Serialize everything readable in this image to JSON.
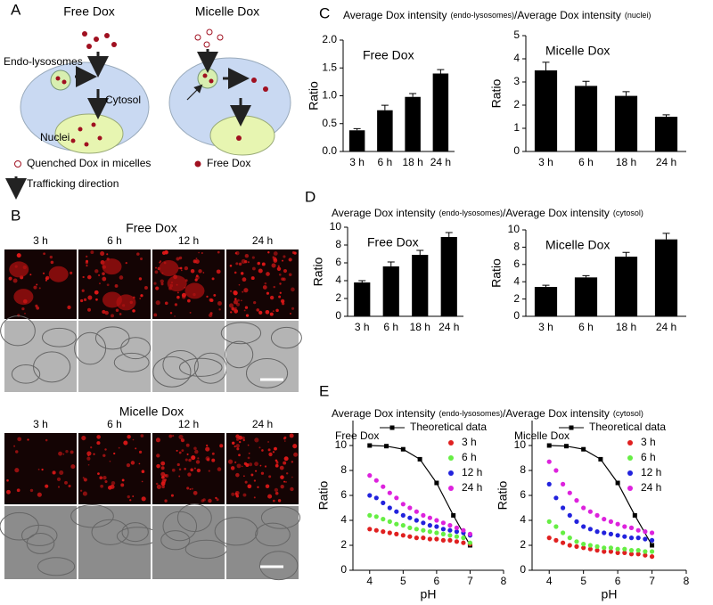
{
  "panel_a": {
    "label": "A",
    "free_title": "Free Dox",
    "micelle_title": "Micelle Dox",
    "endo": "Endo-lysosomes",
    "cytosol": "Cytosol",
    "nuclei": "Nuclei",
    "legend_quenched": "Quenched Dox in micelles",
    "legend_free": "Free Dox",
    "legend_trafficking": "Trafficking direction"
  },
  "panel_b": {
    "label": "B",
    "free_title": "Free Dox",
    "micelle_title": "Micelle Dox",
    "free_times": [
      "3 h",
      "6 h",
      "12 h",
      "24 h"
    ],
    "micelle_times": [
      "3 h",
      "6 h",
      "12 h",
      "24 h"
    ]
  },
  "panel_c": {
    "label": "C",
    "heading": [
      "Average Dox intensity",
      "(endo-lysosomes)",
      "/Average Dox intensity",
      "(nuclei)"
    ]
  },
  "panel_d": {
    "label": "D",
    "heading": [
      "Average Dox intensity",
      "(endo-lysosomes)",
      "/Average Dox intensity",
      "(cytosol)"
    ]
  },
  "panel_e": {
    "label": "E",
    "heading": [
      "Average Dox intensity",
      "(endo-lysosomes)",
      "/Average Dox intensity",
      "(cytosol)"
    ]
  },
  "chart_data": [
    {
      "type": "bar",
      "title": "Free Dox",
      "y_label": "Ratio",
      "color": "#000000",
      "categories": [
        "3 h",
        "6 h",
        "18 h",
        "24 h"
      ],
      "values": [
        0.38,
        0.74,
        0.98,
        1.4
      ],
      "errors": [
        0.03,
        0.09,
        0.06,
        0.07
      ],
      "ylim": [
        0,
        2
      ],
      "yticks": [
        {
          "value": 0,
          "label": "0.0"
        },
        0.5,
        {
          "value": 1,
          "label": "1.0"
        },
        1.5,
        {
          "value": 2,
          "label": "2.0"
        }
      ]
    },
    {
      "type": "bar",
      "title": "Micelle Dox",
      "y_label": "Ratio",
      "color": "#000000",
      "categories": [
        "3 h",
        "6 h",
        "18 h",
        "24 h"
      ],
      "values": [
        3.5,
        2.83,
        2.4,
        1.5
      ],
      "errors": [
        0.35,
        0.2,
        0.18,
        0.08
      ],
      "ylim": [
        0,
        5
      ],
      "yticks": [
        0,
        1,
        2,
        3,
        4,
        5
      ]
    },
    {
      "type": "bar",
      "title": "Free Dox",
      "y_label": "Ratio",
      "color": "#000000",
      "categories": [
        "3 h",
        "6 h",
        "18 h",
        "24 h"
      ],
      "values": [
        3.8,
        5.6,
        6.9,
        8.9
      ],
      "errors": [
        0.2,
        0.5,
        0.5,
        0.5
      ],
      "ylim": [
        0,
        10
      ],
      "yticks": [
        0,
        2,
        4,
        6,
        8,
        10
      ]
    },
    {
      "type": "bar",
      "title": "Micelle Dox",
      "y_label": "Ratio",
      "color": "#000000",
      "categories": [
        "3 h",
        "6 h",
        "18 h",
        "24 h"
      ],
      "values": [
        3.4,
        4.5,
        6.9,
        8.9
      ],
      "errors": [
        0.2,
        0.2,
        0.5,
        0.7
      ],
      "ylim": [
        0,
        10
      ],
      "yticks": [
        0,
        2,
        4,
        6,
        8,
        10
      ]
    },
    {
      "type": "scatter",
      "title": "Free Dox",
      "x_label": "pH",
      "y_label": "Ratio",
      "xlim": [
        3.5,
        8
      ],
      "xticks": [
        4,
        5,
        6,
        7,
        8
      ],
      "ylim": [
        0,
        12
      ],
      "yticks": [
        0,
        2,
        4,
        6,
        8,
        10
      ],
      "series": [
        {
          "name": "Theoretical data",
          "color": "#000000",
          "line": true,
          "x": [
            4,
            4.5,
            5,
            5.5,
            6,
            6.5,
            7
          ],
          "values": [
            10,
            9.95,
            9.7,
            8.9,
            7.0,
            4.4,
            2.0
          ]
        },
        {
          "name": "3 h",
          "color": "#e02020",
          "x": [
            4.0,
            4.2,
            4.4,
            4.6,
            4.8,
            5.0,
            5.2,
            5.4,
            5.6,
            5.8,
            6.0,
            6.2,
            6.4,
            6.6,
            6.8,
            7.0
          ],
          "values": [
            3.3,
            3.2,
            3.1,
            3.0,
            2.9,
            2.8,
            2.7,
            2.6,
            2.6,
            2.5,
            2.5,
            2.4,
            2.4,
            2.3,
            2.2,
            2.1
          ]
        },
        {
          "name": "6 h",
          "color": "#66ee44",
          "x": [
            4.0,
            4.2,
            4.4,
            4.6,
            4.8,
            5.0,
            5.2,
            5.4,
            5.6,
            5.8,
            6.0,
            6.2,
            6.4,
            6.6,
            6.8,
            7.0
          ],
          "values": [
            4.4,
            4.3,
            4.1,
            3.9,
            3.7,
            3.6,
            3.4,
            3.3,
            3.2,
            3.1,
            3.0,
            2.9,
            2.8,
            2.7,
            2.6,
            2.2
          ]
        },
        {
          "name": "12 h",
          "color": "#2222dd",
          "x": [
            4.0,
            4.2,
            4.4,
            4.6,
            4.8,
            5.0,
            5.2,
            5.4,
            5.6,
            5.8,
            6.0,
            6.2,
            6.4,
            6.6,
            6.8,
            7.0
          ],
          "values": [
            6.0,
            5.8,
            5.4,
            5.0,
            4.7,
            4.4,
            4.2,
            4.0,
            3.8,
            3.6,
            3.5,
            3.3,
            3.2,
            3.1,
            3.0,
            2.8
          ]
        },
        {
          "name": "24 h",
          "color": "#dd22dd",
          "x": [
            4.0,
            4.2,
            4.4,
            4.6,
            4.8,
            5.0,
            5.2,
            5.4,
            5.6,
            5.8,
            6.0,
            6.2,
            6.4,
            6.6,
            6.8,
            7.0
          ],
          "values": [
            7.6,
            7.2,
            6.7,
            6.2,
            5.8,
            5.3,
            5.0,
            4.7,
            4.4,
            4.2,
            4.0,
            3.8,
            3.6,
            3.4,
            3.2,
            2.9
          ]
        }
      ]
    },
    {
      "type": "scatter",
      "title": "Micelle Dox",
      "x_label": "pH",
      "y_label": "Ratio",
      "xlim": [
        3.5,
        8
      ],
      "xticks": [
        4,
        5,
        6,
        7,
        8
      ],
      "ylim": [
        0,
        12
      ],
      "yticks": [
        0,
        2,
        4,
        6,
        8,
        10
      ],
      "series": [
        {
          "name": "Theoretical data",
          "color": "#000000",
          "line": true,
          "x": [
            4,
            4.5,
            5,
            5.5,
            6,
            6.5,
            7
          ],
          "values": [
            10,
            9.95,
            9.7,
            8.9,
            7.0,
            4.4,
            2.0
          ]
        },
        {
          "name": "3 h",
          "color": "#e02020",
          "x": [
            4.0,
            4.2,
            4.4,
            4.6,
            4.8,
            5.0,
            5.2,
            5.4,
            5.6,
            5.8,
            6.0,
            6.2,
            6.4,
            6.6,
            6.8,
            7.0
          ],
          "values": [
            2.6,
            2.4,
            2.2,
            2.0,
            1.9,
            1.8,
            1.7,
            1.6,
            1.5,
            1.5,
            1.4,
            1.4,
            1.3,
            1.3,
            1.2,
            1.1
          ]
        },
        {
          "name": "6 h",
          "color": "#66ee44",
          "x": [
            4.0,
            4.2,
            4.4,
            4.6,
            4.8,
            5.0,
            5.2,
            5.4,
            5.6,
            5.8,
            6.0,
            6.2,
            6.4,
            6.6,
            6.8,
            7.0
          ],
          "values": [
            3.9,
            3.5,
            3.0,
            2.6,
            2.3,
            2.1,
            2.0,
            1.9,
            1.8,
            1.8,
            1.7,
            1.7,
            1.6,
            1.6,
            1.5,
            1.5
          ]
        },
        {
          "name": "12 h",
          "color": "#2222dd",
          "x": [
            4.0,
            4.2,
            4.4,
            4.6,
            4.8,
            5.0,
            5.2,
            5.4,
            5.6,
            5.8,
            6.0,
            6.2,
            6.4,
            6.6,
            6.8,
            7.0
          ],
          "values": [
            6.9,
            5.8,
            5.0,
            4.4,
            3.9,
            3.5,
            3.3,
            3.1,
            3.0,
            2.9,
            2.8,
            2.7,
            2.6,
            2.6,
            2.5,
            2.4
          ]
        },
        {
          "name": "24 h",
          "color": "#dd22dd",
          "x": [
            4.0,
            4.2,
            4.4,
            4.6,
            4.8,
            5.0,
            5.2,
            5.4,
            5.6,
            5.8,
            6.0,
            6.2,
            6.4,
            6.6,
            6.8,
            7.0
          ],
          "values": [
            8.7,
            8.0,
            6.9,
            6.2,
            5.6,
            5.0,
            4.7,
            4.4,
            4.1,
            3.9,
            3.7,
            3.5,
            3.4,
            3.2,
            3.1,
            3.0
          ]
        }
      ]
    }
  ]
}
